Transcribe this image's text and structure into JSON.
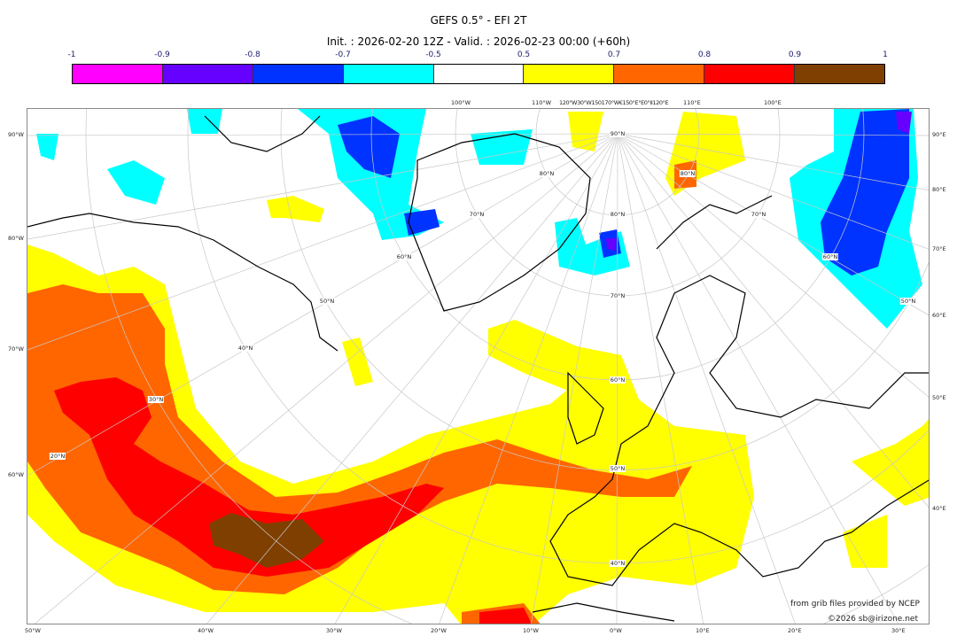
{
  "title": "GEFS 0.5° - EFI 2T",
  "subtitle": "Init. : 2026-02-20 12Z - Valid. : 2026-02-23 00:00 (+60h)",
  "colorbar": {
    "ticks": [
      "-1",
      "-0.9",
      "-0.8",
      "-0.7",
      "-0.5",
      "0.5",
      "0.7",
      "0.8",
      "0.9",
      "1"
    ],
    "colors": [
      "#ff00ff",
      "#6600ff",
      "#0033ff",
      "#00ffff",
      "#ffffff",
      "#ffff00",
      "#ff6600",
      "#ff0000",
      "#7f3f00"
    ]
  },
  "map": {
    "left_labels": [
      "90°W",
      "80°W",
      "70°W",
      "60°W"
    ],
    "right_labels": [
      "90°E",
      "80°E",
      "70°E",
      "60°E",
      "50°E",
      "40°E"
    ],
    "bottom_labels": [
      "50°W",
      "40°W",
      "30°W",
      "20°W",
      "10°W",
      "0°W",
      "10°E",
      "20°E",
      "30°E"
    ],
    "top_labels": [
      "100°W",
      "110°W",
      "120°W30°W150170°W€150°E°E0°II120°E",
      "110°E",
      "100°E"
    ],
    "lat_labels": [
      "90°N",
      "80°N",
      "70°N",
      "60°N",
      "50°N",
      "40°N",
      "60°N",
      "70°N",
      "80°N",
      "50°N",
      "40°N",
      "30°N",
      "20°N",
      "80°N",
      "70°N",
      "60°N",
      "50°N"
    ]
  },
  "credits": {
    "line1": "from grib files provided by NCEP",
    "line2": "©2026 sb@irizone.net"
  }
}
